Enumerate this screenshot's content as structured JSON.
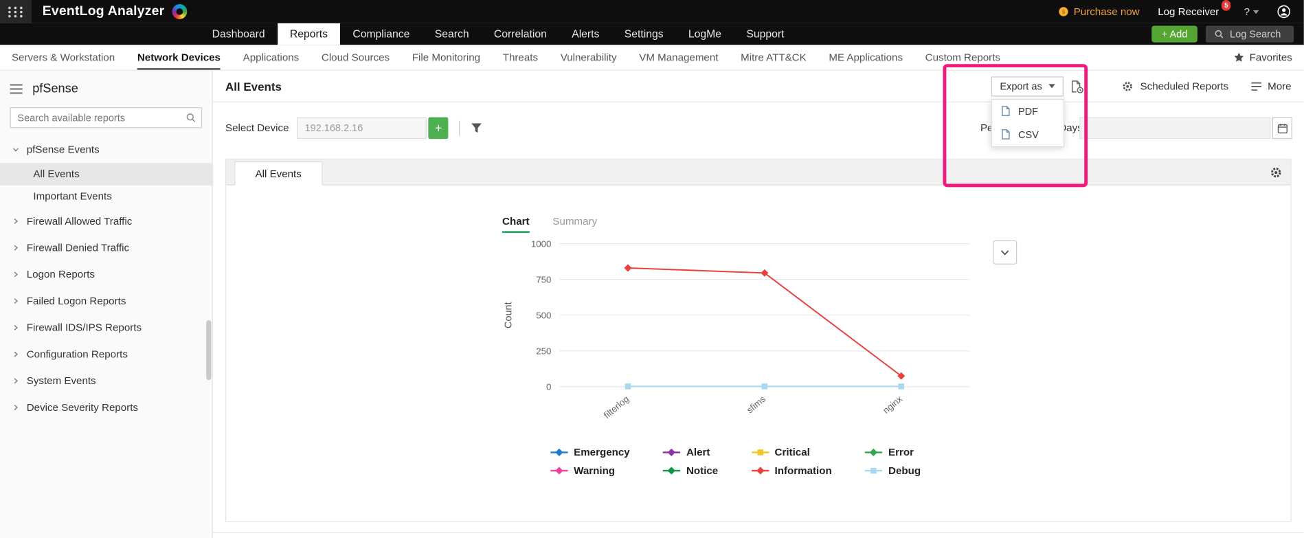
{
  "topbar": {
    "product": "EventLog Analyzer",
    "purchase_label": "Purchase now",
    "log_receiver_label": "Log Receiver",
    "badge": "5",
    "help_label": "?"
  },
  "mainnav": {
    "items": [
      "Dashboard",
      "Reports",
      "Compliance",
      "Search",
      "Correlation",
      "Alerts",
      "Settings",
      "LogMe",
      "Support"
    ],
    "active": "Reports",
    "add_label": "+ Add",
    "log_search_label": "Log Search"
  },
  "subnav": {
    "items": [
      "Servers & Workstation",
      "Network Devices",
      "Applications",
      "Cloud Sources",
      "File Monitoring",
      "Threats",
      "Vulnerability",
      "VM Management",
      "Mitre ATT&CK",
      "ME Applications",
      "Custom Reports"
    ],
    "active": "Network Devices",
    "favorites_label": "Favorites"
  },
  "sidebar": {
    "title": "pfSense",
    "search_placeholder": "Search available reports",
    "tree": [
      {
        "label": "pfSense Events",
        "expanded": true,
        "children": [
          {
            "label": "All Events",
            "selected": true
          },
          {
            "label": "Important Events"
          }
        ]
      },
      {
        "label": "Firewall Allowed Traffic"
      },
      {
        "label": "Firewall Denied Traffic"
      },
      {
        "label": "Logon Reports"
      },
      {
        "label": "Failed Logon Reports"
      },
      {
        "label": "Firewall IDS/IPS Reports"
      },
      {
        "label": "Configuration Reports"
      },
      {
        "label": "System Events"
      },
      {
        "label": "Device Severity Reports"
      }
    ]
  },
  "content": {
    "title": "All Events",
    "export": {
      "button_label": "Export as",
      "menu": [
        "PDF",
        "CSV"
      ]
    },
    "scheduled_reports_label": "Scheduled Reports",
    "more_label": "More",
    "select_device_label": "Select Device",
    "device_value": "192.168.2.16",
    "add_device_label": "+",
    "period_label": "Period",
    "period_value": "Last 30 Days",
    "active_tab": "All Events",
    "chart_tabs": [
      "Chart",
      "Summary"
    ],
    "chart_tab_active": "Chart"
  },
  "chart_data": {
    "type": "line",
    "title": "",
    "categories": [
      "filterlog",
      "sfims",
      "nginx"
    ],
    "series": [
      {
        "name": "Information",
        "color": "#e8403a",
        "marker": "diamond",
        "values": [
          830,
          795,
          75
        ]
      },
      {
        "name": "Debug",
        "color": "#a8d8ef",
        "marker": "square",
        "values": [
          2,
          2,
          2
        ]
      }
    ],
    "xlabel": "",
    "ylabel": "Count",
    "ylim": [
      0,
      1000
    ],
    "yticks": [
      0,
      250,
      500,
      750,
      1000
    ],
    "grid": true,
    "legend_position": "bottom",
    "legend": [
      {
        "label": "Emergency",
        "color": "#1d7dd2",
        "marker": "diamond"
      },
      {
        "label": "Alert",
        "color": "#9031aa",
        "marker": "diamond"
      },
      {
        "label": "Critical",
        "color": "#f5c51d",
        "marker": "square"
      },
      {
        "label": "Error",
        "color": "#2fa84f",
        "marker": "diamond"
      },
      {
        "label": "Warning",
        "color": "#f0439c",
        "marker": "diamond"
      },
      {
        "label": "Notice",
        "color": "#0e9347",
        "marker": "diamond"
      },
      {
        "label": "Information",
        "color": "#e8403a",
        "marker": "diamond"
      },
      {
        "label": "Debug",
        "color": "#a8d8ef",
        "marker": "square"
      }
    ]
  },
  "annotation": {
    "color": "#f2197e"
  }
}
